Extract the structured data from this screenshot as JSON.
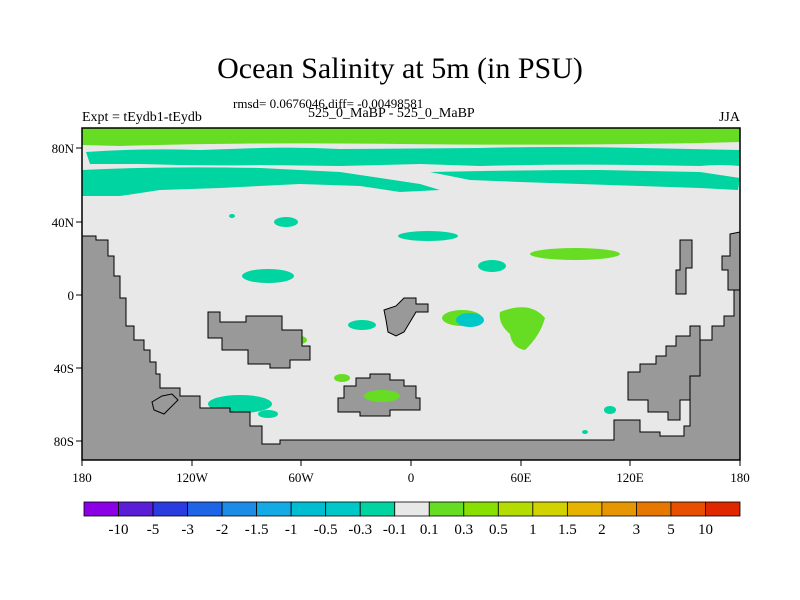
{
  "header": {
    "title": "Ocean Salinity at 5m (in PSU)",
    "rmsd_line": "rmsd= 0.0676046,diff= -0.00498581",
    "left_label": "Expt = tEydb1-tEydb",
    "center_label": "525_0_MaBP - 525_0_MaBP",
    "right_label": "JJA"
  },
  "map": {
    "x_ticks": [
      "180",
      "120W",
      "60W",
      "0",
      "60E",
      "120E",
      "180"
    ],
    "y_ticks": [
      "80N",
      "40N",
      "0",
      "40S",
      "80S"
    ],
    "colors": {
      "land": "#999999",
      "ocean_neutral": "#e8e8e8",
      "negative_small": "#00d4a0",
      "positive_small": "#66dd22",
      "positive_mid": "#88e000",
      "negative_mid": "#00c8c8"
    }
  },
  "colorbar": {
    "labels": [
      "-10",
      "-5",
      "-3",
      "-2",
      "-1.5",
      "-1",
      "-0.5",
      "-0.3",
      "-0.1",
      "0.1",
      "0.3",
      "0.5",
      "1",
      "1.5",
      "2",
      "3",
      "5",
      "10"
    ],
    "colors": [
      "#8c00e6",
      "#5a1ed6",
      "#2a3ce0",
      "#1e64e6",
      "#1e8ce6",
      "#14aae6",
      "#00bed2",
      "#00c8c8",
      "#00d4a0",
      "#e8e8e8",
      "#66dd22",
      "#88e000",
      "#b4dc00",
      "#d2d200",
      "#e6b400",
      "#e69600",
      "#e67800",
      "#e65000",
      "#e02800"
    ]
  }
}
